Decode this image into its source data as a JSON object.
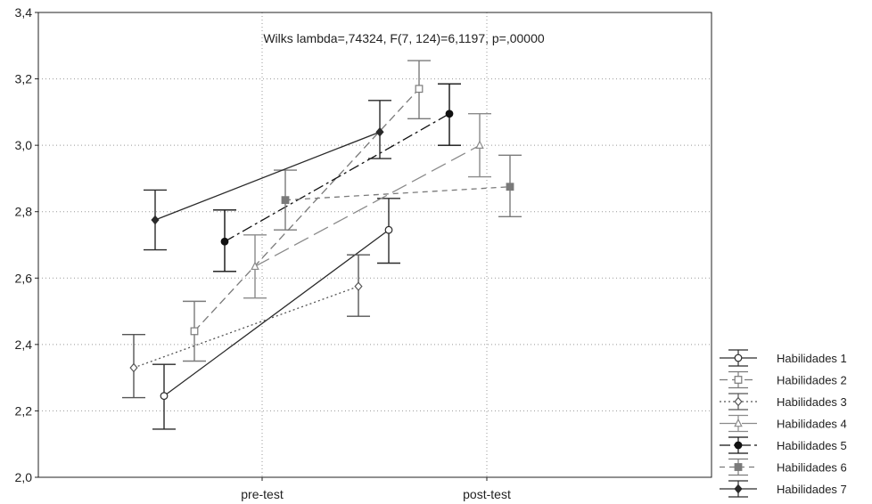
{
  "chart_data": {
    "type": "line",
    "title": "",
    "xlabel": "",
    "ylabel": "",
    "annotation": "Wilks lambda=,74324, F(7, 124)=6,1197, p=,00000",
    "categories": [
      "pre-test",
      "post-test"
    ],
    "ylim": [
      2.0,
      3.4
    ],
    "yticks": [
      "2,0",
      "2,2",
      "2,4",
      "2,6",
      "2,8",
      "3,0",
      "3,2",
      "3,4"
    ],
    "grid": true,
    "legend_position": "right-bottom",
    "series": [
      {
        "name": "Habilidades 1",
        "values": [
          2.245,
          2.745
        ],
        "ci": [
          [
            2.145,
            2.34
          ],
          [
            2.645,
            2.84
          ]
        ],
        "color": "#2a2a2a",
        "marker": "circle-open",
        "dash": "solid"
      },
      {
        "name": "Habilidades 2",
        "values": [
          2.44,
          3.17
        ],
        "ci": [
          [
            2.35,
            2.53
          ],
          [
            3.08,
            3.255
          ]
        ],
        "color": "#7a7a7a",
        "marker": "square-open",
        "dash": "medium"
      },
      {
        "name": "Habilidades 3",
        "values": [
          2.33,
          2.575
        ],
        "ci": [
          [
            2.24,
            2.43
          ],
          [
            2.485,
            2.67
          ]
        ],
        "color": "#555555",
        "marker": "diamond-open",
        "dash": "dotted"
      },
      {
        "name": "Habilidades 4",
        "values": [
          2.635,
          3.0
        ],
        "ci": [
          [
            2.54,
            2.73
          ],
          [
            2.905,
            3.095
          ]
        ],
        "color": "#8a8a8a",
        "marker": "triangle-open",
        "dash": "long"
      },
      {
        "name": "Habilidades 5",
        "values": [
          2.71,
          3.095
        ],
        "ci": [
          [
            2.62,
            2.805
          ],
          [
            3.0,
            3.185
          ]
        ],
        "color": "#111111",
        "marker": "circle-filled",
        "dash": "dashdot"
      },
      {
        "name": "Habilidades 6",
        "values": [
          2.835,
          2.875
        ],
        "ci": [
          [
            2.745,
            2.925
          ],
          [
            2.785,
            2.97
          ]
        ],
        "color": "#7a7a7a",
        "marker": "square-filled",
        "dash": "short"
      },
      {
        "name": "Habilidades 7",
        "values": [
          2.775,
          3.04
        ],
        "ci": [
          [
            2.685,
            2.865
          ],
          [
            2.96,
            3.135
          ]
        ],
        "color": "#2a2a2a",
        "marker": "diamond-filled",
        "dash": "solid"
      }
    ]
  }
}
